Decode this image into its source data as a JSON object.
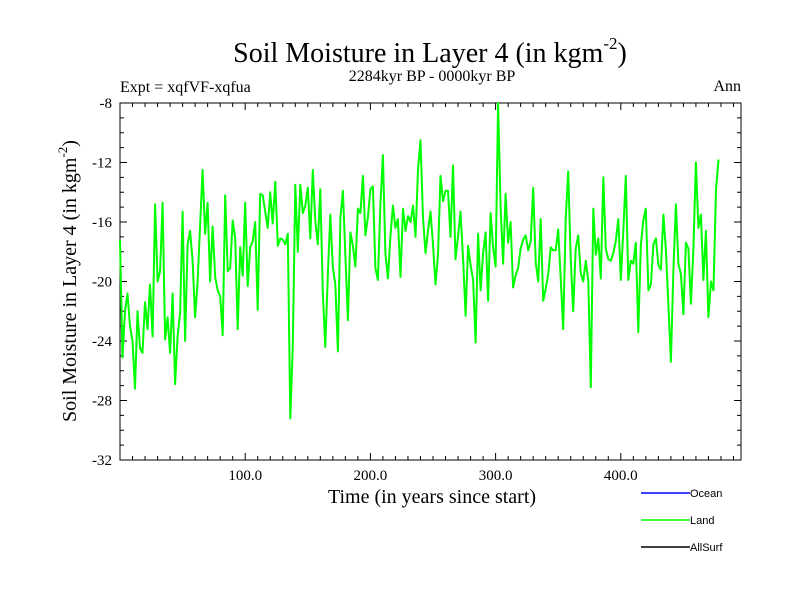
{
  "chart_data": {
    "type": "line",
    "title_main": "Soil Moisture in Layer 4 (in kgm",
    "title_exp": "-2",
    "title_close": ")",
    "subtitle": "2284kyr BP - 0000kyr BP",
    "expt_label": "Expt = xqfVF-xqfua",
    "season_label": "Ann",
    "ylabel_main": "Soil Moisture in Layer 4 (in kgm",
    "ylabel_exp": "-2",
    "ylabel_close": ")",
    "xlabel": "Time (in years since start)",
    "xlim": [
      0,
      496
    ],
    "ylim": [
      -32,
      -8
    ],
    "xticks": [
      100,
      200,
      300,
      400
    ],
    "xtick_labels": [
      "100.0",
      "200.0",
      "300.0",
      "400.0"
    ],
    "yticks": [
      -8,
      -12,
      -16,
      -20,
      -24,
      -28,
      -32
    ],
    "ytick_labels": [
      "-8",
      "-12",
      "-16",
      "-20",
      "-24",
      "-28",
      "-32"
    ],
    "legend": [
      {
        "name": "Ocean",
        "color": "#0000ff"
      },
      {
        "name": "Land",
        "color": "#00ff00"
      },
      {
        "name": "AllSurf",
        "color": "#000000"
      }
    ],
    "series": [
      {
        "name": "Land",
        "color": "#00ff00",
        "x_start": 0,
        "x_step": 2,
        "values": [
          -17.2,
          -25.1,
          -22.0,
          -20.8,
          -23.0,
          -24.0,
          -27.2,
          -22.0,
          -24.5,
          -24.8,
          -21.4,
          -23.2,
          -20.2,
          -23.7,
          -14.8,
          -20.0,
          -19.3,
          -14.7,
          -23.9,
          -22.4,
          -24.8,
          -20.8,
          -26.9,
          -23.7,
          -22.1,
          -15.3,
          -24.0,
          -17.5,
          -16.6,
          -18.6,
          -22.4,
          -20.0,
          -16.2,
          -12.5,
          -16.8,
          -14.7,
          -20.0,
          -16.3,
          -19.7,
          -20.6,
          -21.0,
          -23.6,
          -14.2,
          -19.3,
          -19.1,
          -15.9,
          -17.1,
          -23.2,
          -17.7,
          -19.6,
          -14.7,
          -20.3,
          -17.7,
          -17.3,
          -16.0,
          -21.9,
          -14.1,
          -14.2,
          -15.3,
          -16.4,
          -14.0,
          -16.1,
          -13.3,
          -17.6,
          -17.1,
          -17.2,
          -17.5,
          -16.8,
          -29.2,
          -24.3,
          -13.5,
          -18.0,
          -13.5,
          -15.4,
          -14.9,
          -13.7,
          -17.1,
          -12.5,
          -15.9,
          -17.5,
          -13.8,
          -20.7,
          -24.4,
          -19.6,
          -15.5,
          -19.0,
          -20.2,
          -24.7,
          -15.7,
          -13.9,
          -18.3,
          -22.6,
          -16.7,
          -17.6,
          -19.0,
          -15.1,
          -15.4,
          -12.9,
          -16.9,
          -15.7,
          -13.8,
          -13.6,
          -19.1,
          -19.9,
          -14.8,
          -11.5,
          -18.1,
          -19.8,
          -17.0,
          -14.9,
          -16.4,
          -15.8,
          -19.7,
          -15.1,
          -16.6,
          -15.6,
          -16.0,
          -14.9,
          -17.0,
          -12.5,
          -10.5,
          -15.7,
          -18.1,
          -16.6,
          -15.3,
          -17.5,
          -20.2,
          -18.2,
          -12.9,
          -14.6,
          -13.9,
          -13.9,
          -17.0,
          -12.2,
          -18.5,
          -17.0,
          -15.3,
          -18.5,
          -22.3,
          -17.6,
          -18.9,
          -19.9,
          -24.1,
          -16.8,
          -20.6,
          -18.1,
          -16.7,
          -21.3,
          -15.4,
          -17.7,
          -19.0,
          -8.0,
          -15.0,
          -18.8,
          -14.1,
          -17.4,
          -16.0,
          -20.4,
          -19.6,
          -19.1,
          -17.8,
          -17.2,
          -16.9,
          -17.9,
          -17.3,
          -13.7,
          -18.7,
          -20.0,
          -15.8,
          -21.3,
          -20.5,
          -19.5,
          -17.7,
          -17.9,
          -17.9,
          -16.5,
          -19.8,
          -23.2,
          -15.8,
          -12.6,
          -18.4,
          -22.0,
          -17.8,
          -16.9,
          -19.4,
          -20.0,
          -18.6,
          -20.0,
          -27.1,
          -15.1,
          -18.2,
          -17.1,
          -19.8,
          -13.0,
          -17.8,
          -18.5,
          -18.6,
          -18.1,
          -17.3,
          -15.8,
          -19.9,
          -16.6,
          -12.9,
          -19.9,
          -18.6,
          -18.8,
          -17.4,
          -23.4,
          -17.6,
          -15.9,
          -15.1,
          -20.6,
          -20.2,
          -17.5,
          -17.1,
          -18.9,
          -19.2,
          -15.5,
          -17.9,
          -21.6,
          -25.4,
          -19.2,
          -14.8,
          -18.8,
          -19.5,
          -22.2,
          -17.4,
          -17.8,
          -21.5,
          -17.8,
          -12.0,
          -16.4,
          -15.5,
          -19.9,
          -16.6,
          -22.4,
          -20.0,
          -20.6,
          -13.8,
          -11.8
        ]
      }
    ]
  }
}
